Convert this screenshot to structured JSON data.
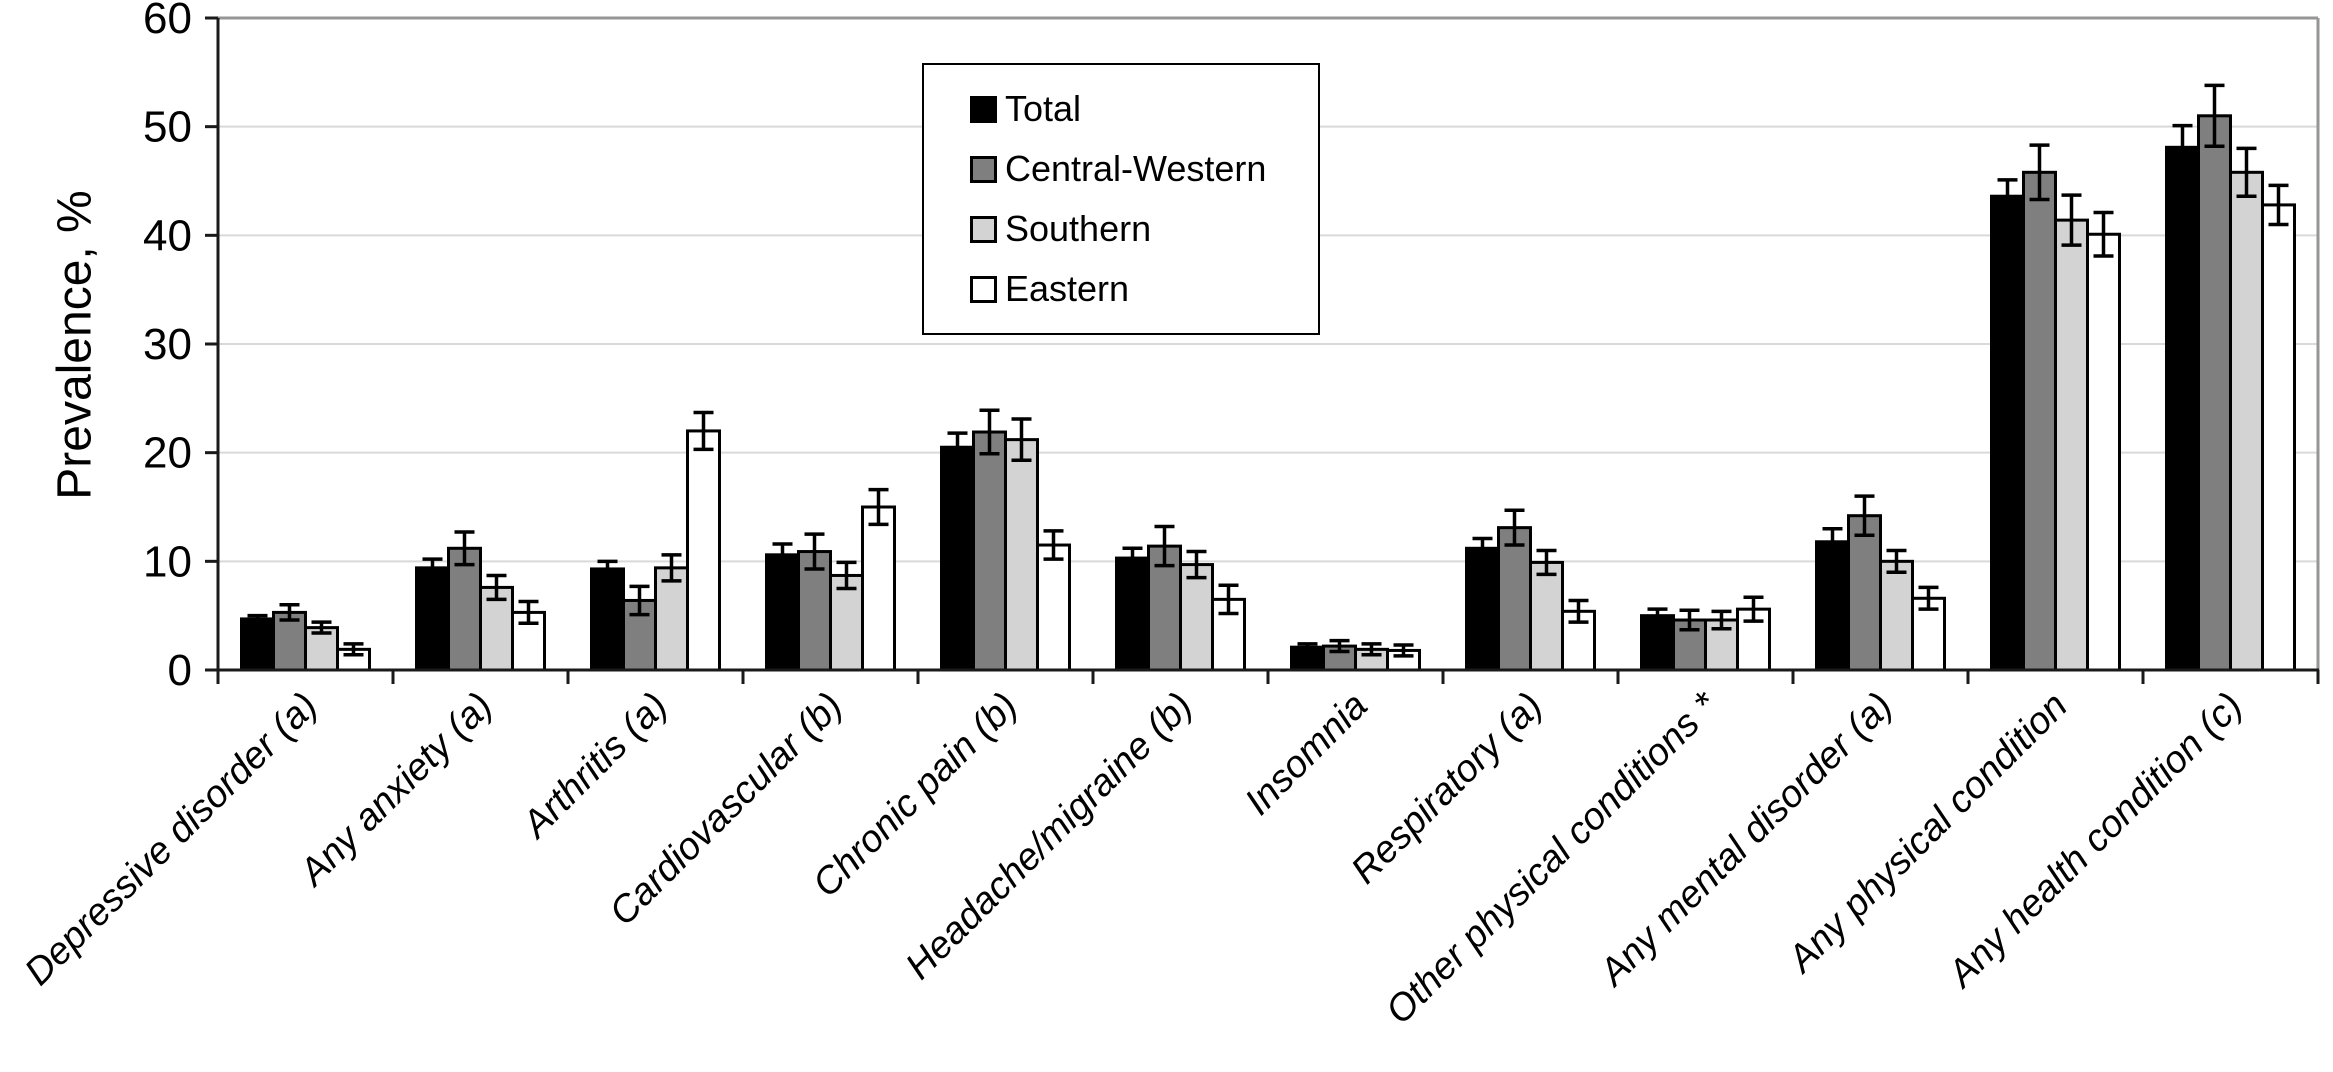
{
  "chart_data": {
    "type": "bar",
    "title": "",
    "ylabel": "Prevalence, %",
    "xlabel": "",
    "ylim": [
      0,
      60
    ],
    "yticks": [
      0,
      10,
      20,
      30,
      40,
      50,
      60
    ],
    "grid": "horizontal",
    "legend_position": "top-center-inside",
    "error_bars": true,
    "categories": [
      "Depressive disorder (a)",
      "Any anxiety (a)",
      "Arthritis (a)",
      "Cardiovascular (b)",
      "Chronic pain (b)",
      "Headache/migraine (b)",
      "Insomnia",
      "Respiratory (a)",
      "Other physical conditions *",
      "Any mental disorder (a)",
      "Any physical condition",
      "Any health condition (c)"
    ],
    "series": [
      {
        "name": "Total",
        "color": "#000000",
        "values": [
          4.7,
          9.4,
          9.3,
          10.6,
          20.5,
          10.3,
          2.1,
          11.2,
          5.0,
          11.8,
          43.6,
          48.1
        ],
        "errors": [
          0.3,
          0.8,
          0.7,
          1.0,
          1.3,
          0.9,
          0.3,
          0.9,
          0.6,
          1.2,
          1.5,
          2.0
        ]
      },
      {
        "name": "Central-Western",
        "color": "#7f7f7f",
        "values": [
          5.3,
          11.2,
          6.4,
          10.9,
          21.9,
          11.4,
          2.2,
          13.1,
          4.6,
          14.2,
          45.8,
          51.0
        ],
        "errors": [
          0.7,
          1.5,
          1.3,
          1.6,
          2.0,
          1.8,
          0.5,
          1.6,
          0.9,
          1.8,
          2.5,
          2.8
        ]
      },
      {
        "name": "Southern",
        "color": "#d3d3d3",
        "values": [
          3.9,
          7.6,
          9.4,
          8.7,
          21.2,
          9.7,
          1.9,
          9.9,
          4.6,
          10.0,
          41.4,
          45.8
        ],
        "errors": [
          0.5,
          1.1,
          1.2,
          1.2,
          1.9,
          1.2,
          0.5,
          1.1,
          0.8,
          1.0,
          2.3,
          2.2
        ]
      },
      {
        "name": "Eastern",
        "color": "#ffffff",
        "values": [
          1.9,
          5.3,
          22.0,
          15.0,
          11.5,
          6.5,
          1.8,
          5.4,
          5.6,
          6.6,
          40.1,
          42.8
        ],
        "errors": [
          0.5,
          1.0,
          1.7,
          1.6,
          1.3,
          1.3,
          0.5,
          1.0,
          1.1,
          1.0,
          2.0,
          1.8
        ]
      }
    ],
    "style_colors": {
      "gridline": "#d9d9d9",
      "plot_border": "#969696",
      "axis": "#1a1a1a",
      "bar_outline": "#000000"
    }
  }
}
